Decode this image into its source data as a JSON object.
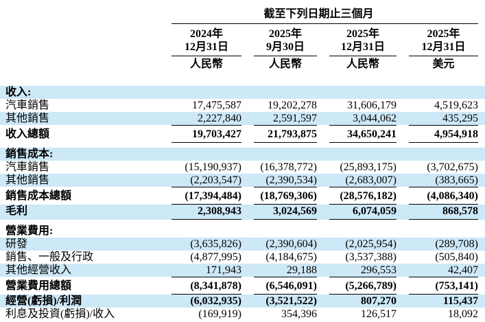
{
  "colors": {
    "stripe": "#cde8f7",
    "rule": "#000000",
    "text": "#000000",
    "background": "#ffffff"
  },
  "table": {
    "period_header": "截至下列日期止三個月",
    "columns": [
      {
        "year": "2024年",
        "date": "12月31日",
        "currency": "人民幣"
      },
      {
        "year": "2025年",
        "date": "9月30日",
        "currency": "人民幣"
      },
      {
        "year": "2025年",
        "date": "12月31日",
        "currency": "人民幣"
      },
      {
        "year": "2025年",
        "date": "12月31日",
        "currency": "美元"
      }
    ],
    "rows": [
      {
        "label": "收入:",
        "shaded": true,
        "bold": true,
        "values": [
          "",
          "",
          "",
          ""
        ]
      },
      {
        "label": "汽車銷售",
        "shaded": false,
        "bold": false,
        "values": [
          "17,475,587",
          "19,202,278",
          "31,606,179",
          "4,519,623"
        ]
      },
      {
        "label": "其他銷售",
        "shaded": true,
        "bold": false,
        "values": [
          "2,227,840",
          "2,591,597",
          "3,044,062",
          "435,295"
        ]
      },
      {
        "label": "收入總額",
        "shaded": false,
        "bold": true,
        "rule_top": true,
        "rule_bottom": true,
        "values": [
          "19,703,427",
          "21,793,875",
          "34,650,241",
          "4,954,918"
        ]
      },
      {
        "label": "銷售成本:",
        "shaded": true,
        "bold": true,
        "gap_before": true,
        "values": [
          "",
          "",
          "",
          ""
        ]
      },
      {
        "label": "汽車銷售",
        "shaded": false,
        "bold": false,
        "values": [
          "(15,190,937)",
          "(16,378,772)",
          "(25,893,175)",
          "(3,702,675)"
        ]
      },
      {
        "label": "其他銷售",
        "shaded": true,
        "bold": false,
        "values": [
          "(2,203,547)",
          "(2,390,534)",
          "(2,683,007)",
          "(383,665)"
        ]
      },
      {
        "label": "銷售成本總額",
        "shaded": false,
        "bold": true,
        "rule_top": true,
        "rule_bottom": true,
        "values": [
          "(17,394,484)",
          "(18,769,306)",
          "(28,576,182)",
          "(4,086,340)"
        ]
      },
      {
        "label": "毛利",
        "shaded": true,
        "bold": true,
        "rule_bottom": true,
        "values": [
          "2,308,943",
          "3,024,569",
          "6,074,059",
          "868,578"
        ]
      },
      {
        "label": "營業費用:",
        "shaded": false,
        "bold": true,
        "gap_before": true,
        "values": [
          "",
          "",
          "",
          ""
        ]
      },
      {
        "label": "研發",
        "shaded": true,
        "bold": false,
        "values": [
          "(3,635,826)",
          "(2,390,604)",
          "(2,025,954)",
          "(289,708)"
        ]
      },
      {
        "label": "銷售、一般及行政",
        "shaded": false,
        "bold": false,
        "values": [
          "(4,877,995)",
          "(4,184,675)",
          "(3,537,388)",
          "(505,840)"
        ]
      },
      {
        "label": "其他經營收入",
        "shaded": true,
        "bold": false,
        "values": [
          "171,943",
          "29,188",
          "296,553",
          "42,407"
        ]
      },
      {
        "label": "營業費用總額",
        "shaded": false,
        "bold": true,
        "rule_top": true,
        "rule_bottom": true,
        "values": [
          "(8,341,878)",
          "(6,546,091)",
          "(5,266,789)",
          "(753,141)"
        ]
      },
      {
        "label": "經營(虧損)/利潤",
        "shaded": true,
        "bold": true,
        "values": [
          "(6,032,935)",
          "(3,521,522)",
          "807,270",
          "115,437"
        ]
      },
      {
        "label": "利息及投資(虧損)/收入",
        "shaded": false,
        "bold": false,
        "values": [
          "(169,919)",
          "354,396",
          "126,517",
          "18,092"
        ]
      }
    ]
  }
}
